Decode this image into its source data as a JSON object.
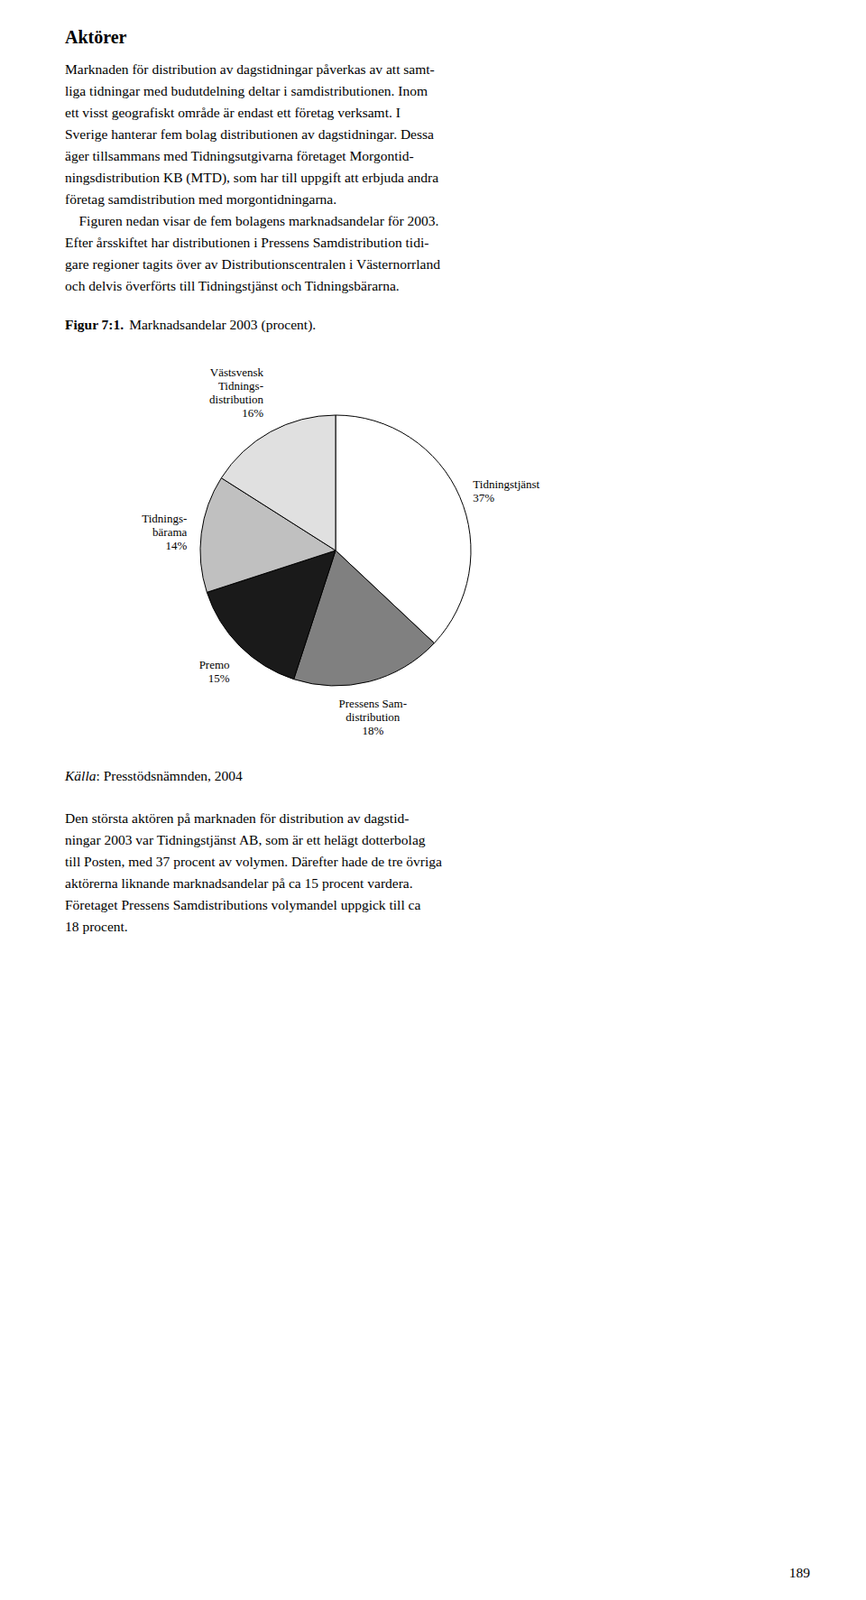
{
  "heading": "Aktörer",
  "paragraphs": [
    "Marknaden för distribution av dagstidningar påverkas av att samt-\nliga tidningar med budutdelning deltar i samdistributionen. Inom\nett visst geografiskt område är endast ett företag verksamt. I\nSverige hanterar fem bolag distributionen av dagstidningar. Dessa\näger tillsammans med Tidningsutgivarna företaget Morgontid-\nningsdistribution KB (MTD), som har till uppgift att erbjuda andra\nföretag samdistribution med morgontidningarna.\n    Figuren nedan visar de fem bolagens marknadsandelar för 2003.\nEfter årsskiftet har distributionen i Pressens Samdistribution tidi-\ngare regioner tagits över av Distributionscentralen i Västernorrland\noch delvis överförts till Tidningstjänst och Tidningsbärarna.",
    "Den största aktören på marknaden för distribution av dagstid-\nningar 2003 var Tidningstjänst AB, som är ett helägt dotterbolag\ntill Posten, med 37 procent av volymen. Därefter hade de tre övriga\naktörerna liknande marknadsandelar på ca 15 procent vardera.\nFöretaget Pressens Samdistributions volymandel uppgick till ca\n18 procent."
  ],
  "figure_label": "Figur 7:1.",
  "source_label": "Källa",
  "source_text": ": Presstödsnämnden, 2004",
  "page_number": "189",
  "chart_data": {
    "type": "pie",
    "title": "Marknadsandelar 2003 (procent).",
    "categories": [
      "Tidningstjänst",
      "Pressens Sam-\ndistribution",
      "Premo",
      "Tidnings-\nbärama",
      "Västsvensk\nTidnings-\ndistribution"
    ],
    "values": [
      37,
      18,
      15,
      14,
      16
    ],
    "value_labels": [
      "37%",
      "18%",
      "15%",
      "14%",
      "16%"
    ],
    "colors": [
      "#ffffff",
      "#808080",
      "#1a1a1a",
      "#c0c0c0",
      "#e0e0e0"
    ],
    "data_labels": true
  }
}
